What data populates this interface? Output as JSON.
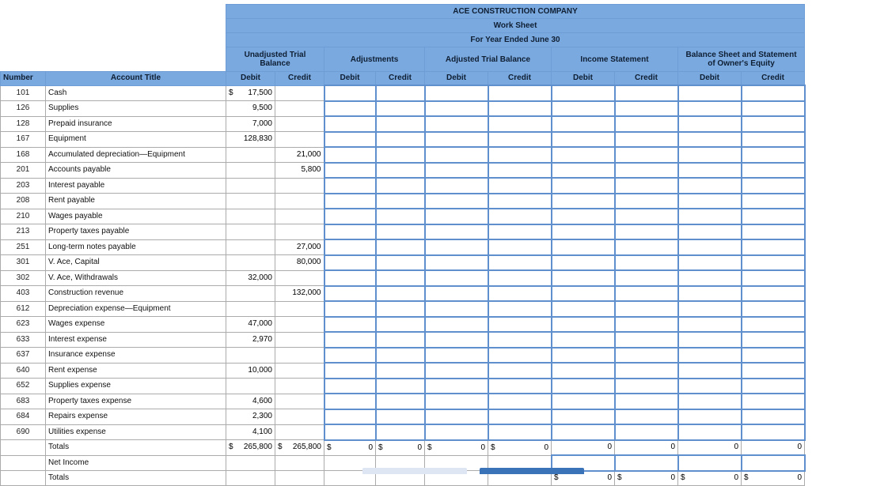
{
  "header": {
    "company": "ACE CONSTRUCTION COMPANY",
    "sheet": "Work Sheet",
    "period": "For Year Ended June 30"
  },
  "groups": {
    "unadjusted": "Unadjusted Trial Balance",
    "adjustments": "Adjustments",
    "adjusted": "Adjusted Trial Balance",
    "income": "Income Statement",
    "balance": "Balance Sheet and Statement of Owner's Equity"
  },
  "columns": {
    "number": "Number",
    "account_title": "Account Title",
    "debit": "Debit",
    "credit": "Credit"
  },
  "accounts": [
    {
      "number": "101",
      "title": "Cash",
      "debit": "17,500",
      "credit": "",
      "debit_cur": "$"
    },
    {
      "number": "126",
      "title": "Supplies",
      "debit": "9,500",
      "credit": ""
    },
    {
      "number": "128",
      "title": "Prepaid insurance",
      "debit": "7,000",
      "credit": ""
    },
    {
      "number": "167",
      "title": "Equipment",
      "debit": "128,830",
      "credit": ""
    },
    {
      "number": "168",
      "title": "Accumulated depreciation—Equipment",
      "debit": "",
      "credit": "21,000"
    },
    {
      "number": "201",
      "title": "Accounts payable",
      "debit": "",
      "credit": "5,800"
    },
    {
      "number": "203",
      "title": "Interest payable",
      "debit": "",
      "credit": ""
    },
    {
      "number": "208",
      "title": "Rent payable",
      "debit": "",
      "credit": ""
    },
    {
      "number": "210",
      "title": "Wages payable",
      "debit": "",
      "credit": ""
    },
    {
      "number": "213",
      "title": "Property taxes payable",
      "debit": "",
      "credit": ""
    },
    {
      "number": "251",
      "title": "Long-term notes payable",
      "debit": "",
      "credit": "27,000"
    },
    {
      "number": "301",
      "title": "V. Ace, Capital",
      "debit": "",
      "credit": "80,000"
    },
    {
      "number": "302",
      "title": "V. Ace, Withdrawals",
      "debit": "32,000",
      "credit": ""
    },
    {
      "number": "403",
      "title": "Construction revenue",
      "debit": "",
      "credit": "132,000"
    },
    {
      "number": "612",
      "title": "Depreciation expense—Equipment",
      "debit": "",
      "credit": ""
    },
    {
      "number": "623",
      "title": "Wages expense",
      "debit": "47,000",
      "credit": ""
    },
    {
      "number": "633",
      "title": "Interest expense",
      "debit": "2,970",
      "credit": ""
    },
    {
      "number": "637",
      "title": "Insurance expense",
      "debit": "",
      "credit": ""
    },
    {
      "number": "640",
      "title": "Rent expense",
      "debit": "10,000",
      "credit": ""
    },
    {
      "number": "652",
      "title": "Supplies expense",
      "debit": "",
      "credit": ""
    },
    {
      "number": "683",
      "title": "Property taxes expense",
      "debit": "4,600",
      "credit": ""
    },
    {
      "number": "684",
      "title": "Repairs expense",
      "debit": "2,300",
      "credit": ""
    },
    {
      "number": "690",
      "title": "Utilities expense",
      "debit": "4,100",
      "credit": ""
    }
  ],
  "totals": {
    "label": "Totals",
    "currency": "$",
    "unadj_debit": "265,800",
    "unadj_credit": "265,800",
    "adj_debit": "0",
    "adj_credit": "0",
    "atb_debit": "0",
    "atb_credit": "0",
    "is_debit": "0",
    "is_credit": "0",
    "bs_debit": "0",
    "bs_credit": "0"
  },
  "net_income": {
    "label": "Net Income"
  },
  "final_totals": {
    "label": "Totals",
    "currency": "$",
    "is_debit": "0",
    "is_credit": "0",
    "bs_debit": "0",
    "bs_credit": "0"
  },
  "colors": {
    "header_bg": "#7aa9e0",
    "input_border": "#5f8fcc",
    "btn_prev": "#dde6f2",
    "btn_next": "#3a73b8"
  }
}
